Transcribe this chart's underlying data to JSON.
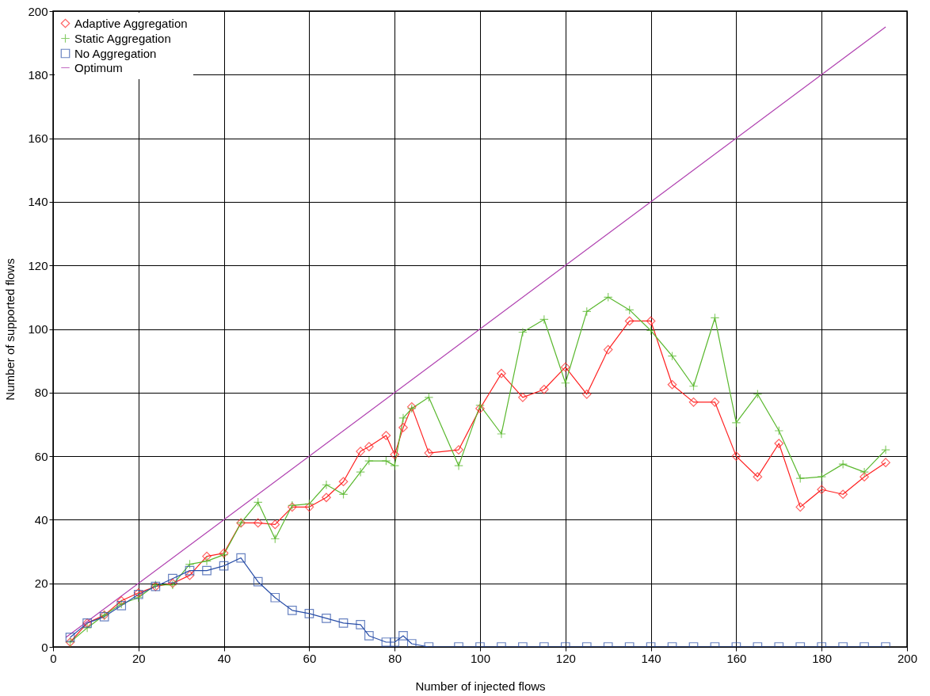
{
  "chart_data": {
    "type": "line",
    "xlabel": "Number of injected flows",
    "ylabel": "Number of supported flows",
    "xlim": [
      0,
      200
    ],
    "ylim": [
      0,
      200
    ],
    "xticks": [
      0,
      20,
      40,
      60,
      80,
      100,
      120,
      140,
      160,
      180,
      200
    ],
    "yticks": [
      0,
      20,
      40,
      60,
      80,
      100,
      120,
      140,
      160,
      180,
      200
    ],
    "grid": true,
    "legend": "top left",
    "line_style": "solid",
    "series": [
      {
        "name": "Adaptive Aggregation",
        "color": "#ff2020",
        "marker": "diamond",
        "x": [
          4,
          8,
          12,
          16,
          20,
          24,
          28,
          32,
          36,
          40,
          44,
          48,
          52,
          56,
          60,
          64,
          68,
          72,
          74,
          78,
          80,
          82,
          84,
          88,
          95,
          100,
          105,
          110,
          115,
          120,
          125,
          130,
          135,
          140,
          145,
          150,
          155,
          160,
          165,
          170,
          175,
          180,
          185,
          190,
          195
        ],
        "values": [
          1.5,
          7.5,
          10,
          14.5,
          17,
          19,
          20,
          22.5,
          28.5,
          29.5,
          39,
          39,
          38.5,
          44,
          44,
          47,
          52,
          61.5,
          63,
          66.5,
          60.5,
          69,
          75.5,
          61,
          62,
          75,
          86,
          78.5,
          81,
          88,
          79.5,
          93.5,
          102.5,
          102.5,
          82.5,
          77,
          77,
          60,
          53.5,
          64,
          44,
          49.5,
          48,
          53.5,
          58
        ]
      },
      {
        "name": "Static Aggregation",
        "color": "#5ab82e",
        "marker": "cross",
        "x": [
          4,
          8,
          12,
          16,
          20,
          24,
          28,
          32,
          36,
          40,
          44,
          48,
          52,
          56,
          60,
          64,
          68,
          72,
          74,
          78,
          80,
          82,
          84,
          88,
          95,
          100,
          105,
          110,
          115,
          120,
          125,
          130,
          135,
          140,
          145,
          150,
          155,
          160,
          165,
          170,
          175,
          180,
          185,
          190,
          195
        ],
        "values": [
          1.5,
          6,
          10,
          13.5,
          15.5,
          19.5,
          19.5,
          26,
          27,
          29,
          39,
          45.5,
          34,
          44.5,
          45,
          51,
          48,
          55,
          58.5,
          58.5,
          57,
          72,
          75,
          78.5,
          57,
          76,
          67,
          99,
          103,
          83,
          105.5,
          110,
          106,
          99.5,
          91.5,
          82,
          103.5,
          70.5,
          79.5,
          68,
          53,
          53.5,
          57.5,
          55,
          62
        ]
      },
      {
        "name": "No Aggregation",
        "color": "#2a4fa8",
        "marker": "square",
        "x": [
          4,
          8,
          12,
          16,
          20,
          24,
          28,
          32,
          36,
          40,
          44,
          48,
          52,
          56,
          60,
          64,
          68,
          72,
          74,
          78,
          80,
          82,
          84,
          88,
          95,
          100,
          105,
          110,
          115,
          120,
          125,
          130,
          135,
          140,
          145,
          150,
          155,
          160,
          165,
          170,
          175,
          180,
          185,
          190,
          195
        ],
        "values": [
          3,
          7.5,
          9.5,
          13,
          16.5,
          19,
          21.5,
          24,
          24,
          25.5,
          28,
          20.5,
          15.5,
          11.5,
          10.5,
          9,
          7.5,
          7,
          3.5,
          1.5,
          1.5,
          3.5,
          1,
          0,
          0,
          0,
          0,
          0,
          0,
          0,
          0,
          0,
          0,
          0,
          0,
          0,
          0,
          0,
          0,
          0,
          0,
          0,
          0,
          0,
          0
        ]
      },
      {
        "name": "Optimum",
        "color": "#b040b0",
        "marker": "none",
        "x": [
          3,
          195
        ],
        "values": [
          3,
          195
        ]
      }
    ]
  }
}
